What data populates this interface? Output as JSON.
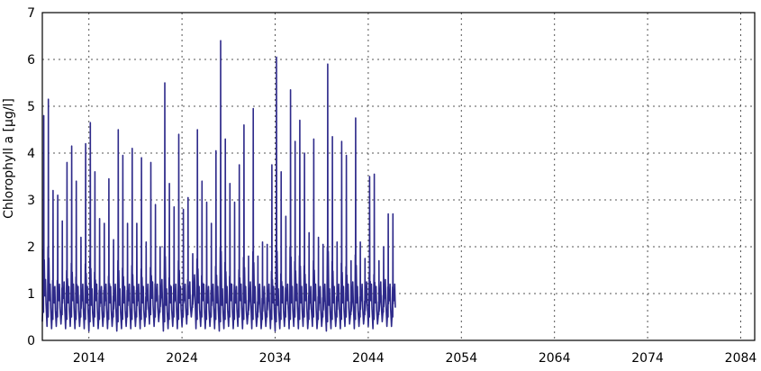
{
  "chart_data": {
    "type": "line",
    "title": "",
    "xlabel": "",
    "ylabel": "Chlorophyll a [µg/l]",
    "xlim": [
      2009.0,
      2085.5
    ],
    "ylim": [
      0,
      7
    ],
    "grid": true,
    "legend": "none",
    "x_ticks": [
      {
        "value": 2014,
        "label": "2014"
      },
      {
        "value": 2024,
        "label": "2024"
      },
      {
        "value": 2034,
        "label": "2034"
      },
      {
        "value": 2044,
        "label": "2044"
      },
      {
        "value": 2054,
        "label": "2054"
      },
      {
        "value": 2064,
        "label": "2064"
      },
      {
        "value": 2074,
        "label": "2074"
      },
      {
        "value": 2084,
        "label": "2084"
      }
    ],
    "y_ticks": [
      {
        "value": 0,
        "label": "0"
      },
      {
        "value": 1,
        "label": "1"
      },
      {
        "value": 2,
        "label": "2"
      },
      {
        "value": 3,
        "label": "3"
      },
      {
        "value": 4,
        "label": "4"
      },
      {
        "value": 5,
        "label": "5"
      },
      {
        "value": 6,
        "label": "6"
      },
      {
        "value": 7,
        "label": "7"
      }
    ],
    "series": [
      {
        "color": "#2e2a8a",
        "x_start": 2009.0,
        "x_step": 0.5,
        "values": [
          4.8,
          5.15,
          3.2,
          3.1,
          2.55,
          3.8,
          4.15,
          3.4,
          2.2,
          4.2,
          4.65,
          3.6,
          2.6,
          2.5,
          3.45,
          2.15,
          4.5,
          3.95,
          2.5,
          4.1,
          2.5,
          3.9,
          2.1,
          3.8,
          2.9,
          2.0,
          5.5,
          3.35,
          2.85,
          4.4,
          2.8,
          3.05,
          1.85,
          4.5,
          3.4,
          2.95,
          2.5,
          4.05,
          6.4,
          4.3,
          3.35,
          2.95,
          3.75,
          4.6,
          1.8,
          4.95,
          1.8,
          2.1,
          2.05,
          3.75,
          6.05,
          3.6,
          2.65,
          5.35,
          4.25,
          4.7,
          4.0,
          2.3,
          4.3,
          2.2,
          2.05,
          5.9,
          4.35,
          2.1,
          4.25,
          3.95,
          1.7,
          4.75,
          2.1,
          1.75,
          3.5,
          3.55,
          1.7,
          2.0,
          2.7,
          2.7
        ],
        "min_values": [
          0.4,
          0.3,
          0.25,
          0.3,
          0.35,
          0.25,
          0.3,
          0.25,
          0.3,
          0.25,
          0.2,
          0.3,
          0.25,
          0.3,
          0.25,
          0.3,
          0.2,
          0.25,
          0.3,
          0.25,
          0.3,
          0.25,
          0.3,
          0.35,
          0.3,
          0.4,
          0.2,
          0.25,
          0.3,
          0.25,
          0.3,
          0.35,
          0.5,
          0.25,
          0.3,
          0.25,
          0.3,
          0.25,
          0.2,
          0.25,
          0.3,
          0.25,
          0.3,
          0.25,
          0.35,
          0.25,
          0.3,
          0.25,
          0.3,
          0.25,
          0.2,
          0.25,
          0.3,
          0.25,
          0.3,
          0.25,
          0.3,
          0.25,
          0.3,
          0.25,
          0.3,
          0.2,
          0.25,
          0.3,
          0.25,
          0.3,
          0.35,
          0.25,
          0.3,
          0.35,
          0.3,
          0.25,
          0.35,
          0.4,
          0.3,
          0.3
        ]
      }
    ]
  }
}
